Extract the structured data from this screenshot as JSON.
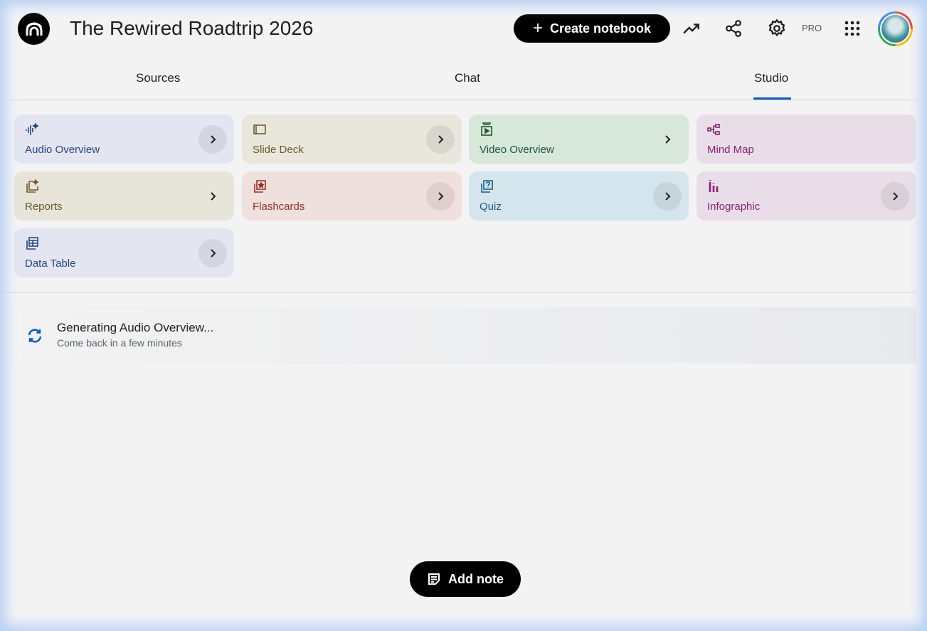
{
  "header": {
    "title": "The Rewired Roadtrip 2026",
    "create_label": "Create notebook",
    "pro_label": "PRO"
  },
  "tabs": [
    {
      "label": "Sources"
    },
    {
      "label": "Chat"
    },
    {
      "label": "Studio",
      "active": true
    }
  ],
  "studio": {
    "cards": [
      {
        "label": "Audio Overview",
        "icon": "audio-waveform-icon",
        "bg": "#e3e6f0",
        "color": "#27467f"
      },
      {
        "label": "Slide Deck",
        "icon": "slides-icon",
        "bg": "#e9e7dc",
        "color": "#6b5a2a"
      },
      {
        "label": "Video Overview",
        "icon": "video-icon",
        "bg": "#d7e7da",
        "color": "#1d5631"
      },
      {
        "label": "Mind Map",
        "icon": "mind-map-icon",
        "bg": "#e9dee7",
        "color": "#8a1f77"
      },
      {
        "label": "Reports",
        "icon": "reports-icon",
        "bg": "#e7e5d9",
        "color": "#6a5a26"
      },
      {
        "label": "Flashcards",
        "icon": "flashcards-icon",
        "bg": "#efe0dd",
        "color": "#9b2c2c"
      },
      {
        "label": "Quiz",
        "icon": "quiz-icon",
        "bg": "#d5e5ed",
        "color": "#1a5c8a"
      },
      {
        "label": "Infographic",
        "icon": "infographic-icon",
        "bg": "#e9dee7",
        "color": "#8a1f77"
      },
      {
        "label": "Data Table",
        "icon": "data-table-icon",
        "bg": "#e3e6f0",
        "color": "#27467f"
      }
    ],
    "generating": {
      "title": "Generating Audio Overview...",
      "subtitle": "Come back in a few minutes"
    },
    "add_note_label": "Add note"
  },
  "colors": {
    "accent": "#0b57d0"
  }
}
